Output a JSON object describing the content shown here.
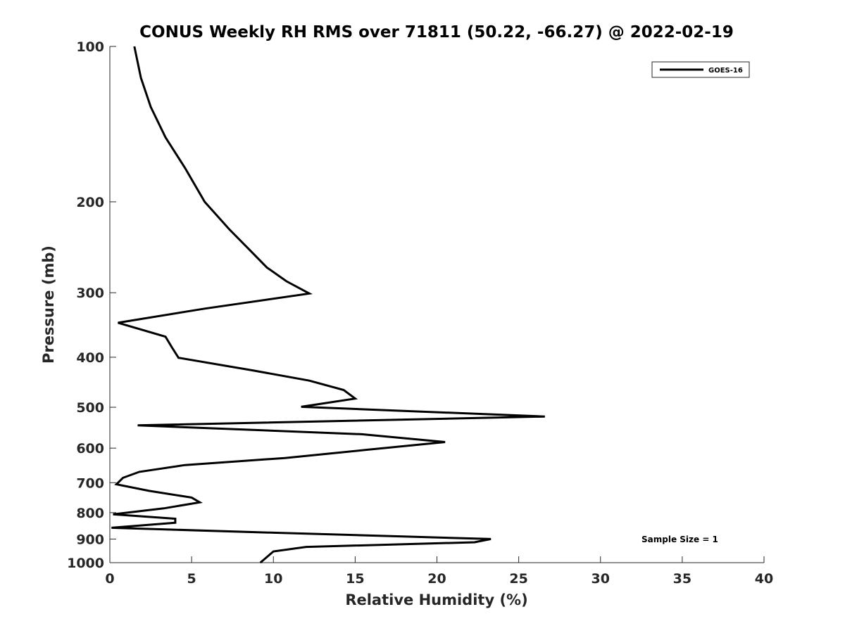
{
  "chart_data": {
    "type": "line",
    "title": "CONUS Weekly RH RMS over 71811 (50.22, -66.27) @ 2022-02-19",
    "xlabel": "Relative Humidity (%)",
    "ylabel": "Pressure (mb)",
    "xlim": [
      0,
      40
    ],
    "ylim": [
      100,
      1000
    ],
    "y_scale": "log",
    "y_inverted": true,
    "x_ticks": [
      0,
      5,
      10,
      15,
      20,
      25,
      30,
      35,
      40
    ],
    "y_ticks": [
      100,
      200,
      300,
      400,
      500,
      600,
      700,
      800,
      900,
      1000
    ],
    "grid": false,
    "legend": {
      "placement": "top-right",
      "entries": [
        "GOES-16"
      ]
    },
    "annotation": "Sample Size = 1",
    "series": [
      {
        "name": "GOES-16",
        "color": "#000000",
        "points": [
          [
            1.5,
            100
          ],
          [
            1.9,
            115
          ],
          [
            2.5,
            131
          ],
          [
            3.4,
            150
          ],
          [
            4.6,
            172
          ],
          [
            5.8,
            200
          ],
          [
            7.3,
            226
          ],
          [
            8.5,
            247
          ],
          [
            9.6,
            268
          ],
          [
            10.8,
            285
          ],
          [
            12.2,
            301
          ],
          [
            5.8,
            322
          ],
          [
            0.5,
            343
          ],
          [
            3.4,
            365
          ],
          [
            3.8,
            383
          ],
          [
            4.2,
            401
          ],
          [
            8.7,
            424
          ],
          [
            12.2,
            444
          ],
          [
            14.3,
            463
          ],
          [
            15.0,
            481
          ],
          [
            11.7,
            499
          ],
          [
            26.6,
            521
          ],
          [
            1.7,
            542
          ],
          [
            15.4,
            564
          ],
          [
            20.5,
            584
          ],
          [
            15.6,
            605
          ],
          [
            10.7,
            627
          ],
          [
            4.6,
            647
          ],
          [
            1.8,
            667
          ],
          [
            0.8,
            685
          ],
          [
            0.4,
            705
          ],
          [
            2.4,
            726
          ],
          [
            5.0,
            748
          ],
          [
            5.5,
            764
          ],
          [
            3.3,
            785
          ],
          [
            0.2,
            806
          ],
          [
            4.0,
            822
          ],
          [
            4.0,
            837
          ],
          [
            0.1,
            856
          ],
          [
            10.0,
            875
          ],
          [
            23.3,
            900
          ],
          [
            22.3,
            913
          ],
          [
            12.0,
            932
          ],
          [
            10.0,
            951
          ],
          [
            9.2,
            1000
          ]
        ]
      }
    ]
  }
}
